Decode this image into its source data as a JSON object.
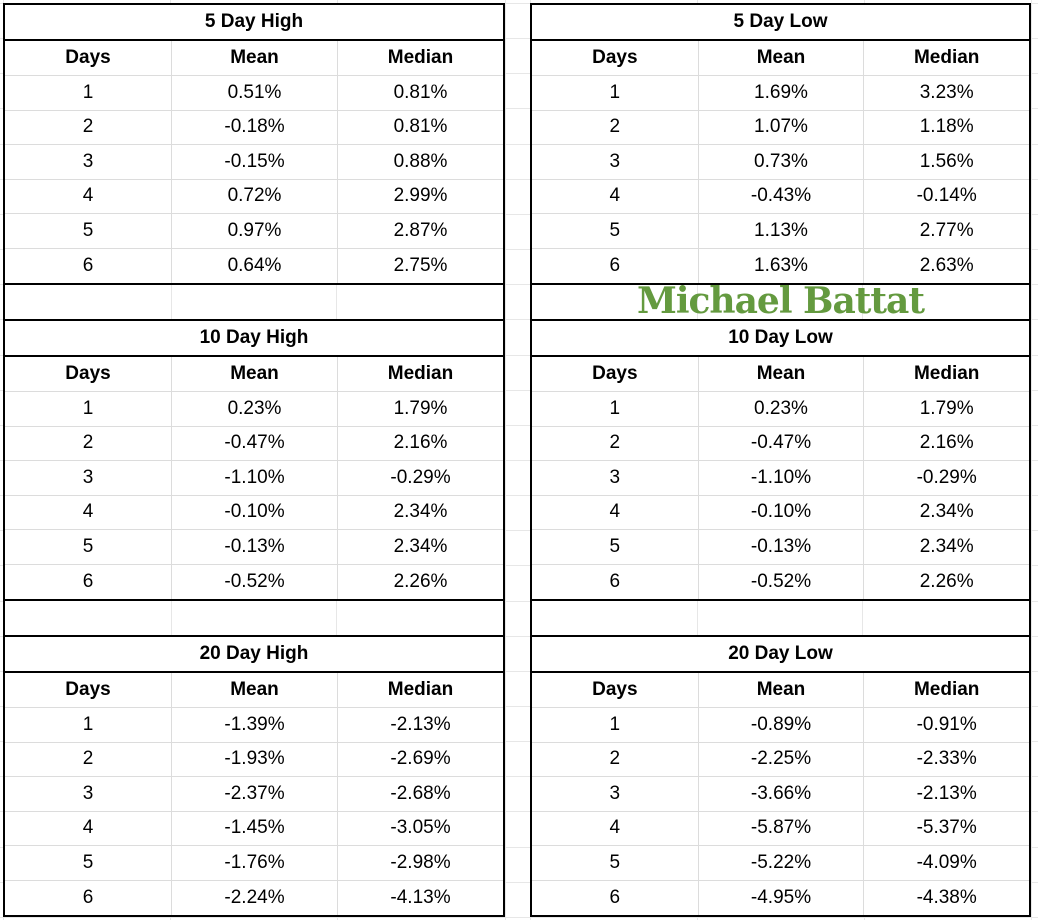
{
  "page": {
    "background": "#ffffff",
    "table_border_color": "#000000",
    "gridline_color": "#e7e7e7",
    "text_color": "#000000"
  },
  "watermark": {
    "text": "Michael Battat",
    "color": "#649A3F"
  },
  "column_headers": [
    "Days",
    "Mean",
    "Median"
  ],
  "tables": [
    {
      "id": "5-day-high",
      "title": "5 Day High",
      "side": "left",
      "rows": [
        [
          "1",
          "0.51%",
          "0.81%"
        ],
        [
          "2",
          "-0.18%",
          "0.81%"
        ],
        [
          "3",
          "-0.15%",
          "0.88%"
        ],
        [
          "4",
          "0.72%",
          "2.99%"
        ],
        [
          "5",
          "0.97%",
          "2.87%"
        ],
        [
          "6",
          "0.64%",
          "2.75%"
        ]
      ]
    },
    {
      "id": "5-day-low",
      "title": "5 Day Low",
      "side": "right",
      "rows": [
        [
          "1",
          "1.69%",
          "3.23%"
        ],
        [
          "2",
          "1.07%",
          "1.18%"
        ],
        [
          "3",
          "0.73%",
          "1.56%"
        ],
        [
          "4",
          "-0.43%",
          "-0.14%"
        ],
        [
          "5",
          "1.13%",
          "2.77%"
        ],
        [
          "6",
          "1.63%",
          "2.63%"
        ]
      ]
    },
    {
      "id": "10-day-high",
      "title": "10 Day High",
      "side": "left",
      "rows": [
        [
          "1",
          "0.23%",
          "1.79%"
        ],
        [
          "2",
          "-0.47%",
          "2.16%"
        ],
        [
          "3",
          "-1.10%",
          "-0.29%"
        ],
        [
          "4",
          "-0.10%",
          "2.34%"
        ],
        [
          "5",
          "-0.13%",
          "2.34%"
        ],
        [
          "6",
          "-0.52%",
          "2.26%"
        ]
      ]
    },
    {
      "id": "10-day-low",
      "title": "10 Day Low",
      "side": "right",
      "rows": [
        [
          "1",
          "0.23%",
          "1.79%"
        ],
        [
          "2",
          "-0.47%",
          "2.16%"
        ],
        [
          "3",
          "-1.10%",
          "-0.29%"
        ],
        [
          "4",
          "-0.10%",
          "2.34%"
        ],
        [
          "5",
          "-0.13%",
          "2.34%"
        ],
        [
          "6",
          "-0.52%",
          "2.26%"
        ]
      ]
    },
    {
      "id": "20-day-high",
      "title": "20 Day High",
      "side": "left",
      "rows": [
        [
          "1",
          "-1.39%",
          "-2.13%"
        ],
        [
          "2",
          "-1.93%",
          "-2.69%"
        ],
        [
          "3",
          "-2.37%",
          "-2.68%"
        ],
        [
          "4",
          "-1.45%",
          "-3.05%"
        ],
        [
          "5",
          "-1.76%",
          "-2.98%"
        ],
        [
          "6",
          "-2.24%",
          "-4.13%"
        ]
      ]
    },
    {
      "id": "20-day-low",
      "title": "20 Day Low",
      "side": "right",
      "rows": [
        [
          "1",
          "-0.89%",
          "-0.91%"
        ],
        [
          "2",
          "-2.25%",
          "-2.33%"
        ],
        [
          "3",
          "-3.66%",
          "-2.13%"
        ],
        [
          "4",
          "-5.87%",
          "-5.37%"
        ],
        [
          "5",
          "-5.22%",
          "-4.09%"
        ],
        [
          "6",
          "-4.95%",
          "-4.38%"
        ]
      ]
    }
  ]
}
